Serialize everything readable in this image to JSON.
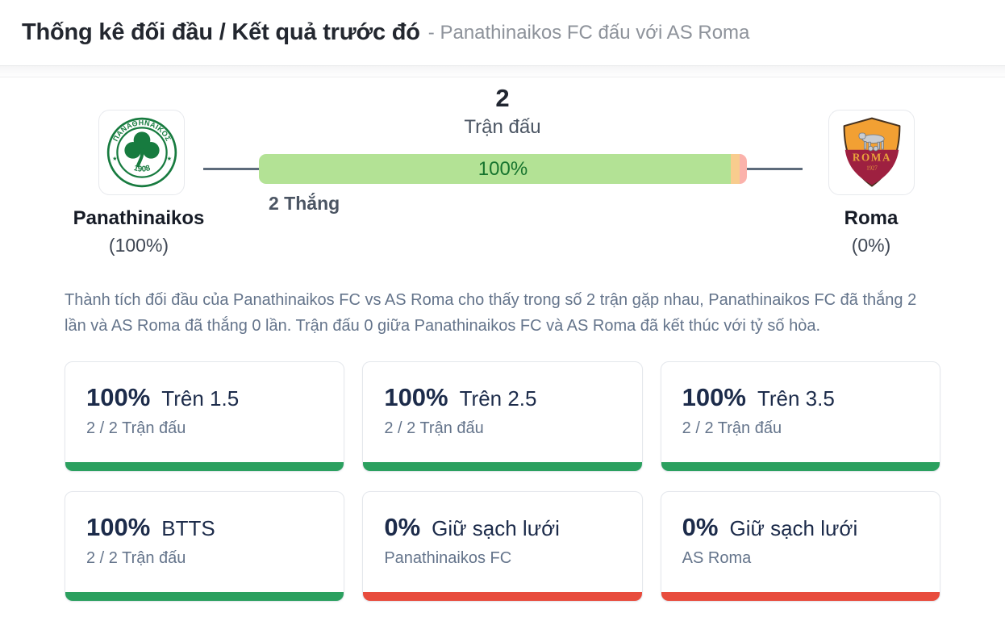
{
  "header": {
    "title": "Thống kê đối đầu / Kết quả trước đó",
    "subtitle": "- Panathinaikos FC đấu với AS Roma"
  },
  "h2h": {
    "matches_count": "2",
    "matches_label": "Trận đấu",
    "bar": {
      "label": "100%",
      "label_color": "#17742e",
      "segments": {
        "win": {
          "width": "96.7%",
          "color": "#b3e295"
        },
        "draw": {
          "width": "1.8%",
          "color": "#f8cc8e"
        },
        "loss": {
          "width": "1.5%",
          "color": "#fbb2ab"
        }
      }
    },
    "win_text": "2 Thắng",
    "home": {
      "name": "Panathinaikos",
      "pct": "(100%)",
      "logo": {
        "club": "ΠΑΝΑΘΗΝΑΪΚΟΣ",
        "year": "1908",
        "star": "★"
      }
    },
    "away": {
      "name": "Roma",
      "pct": "(0%)",
      "logo": {
        "club": "ROMA",
        "year": "1927"
      }
    },
    "wins": 2,
    "draws": 0,
    "losses": 0
  },
  "summary": "Thành tích đối đầu của Panathinaikos FC vs AS Roma cho thấy trong số 2 trận gặp nhau, Panathinaikos FC đã thắng 2 lần và AS Roma đã thắng 0 lần. Trận đấu 0 giữa Panathinaikos FC và AS Roma đã kết thúc với tỷ số hòa.",
  "stats_cards": [
    {
      "value": "100%",
      "label": "Trên 1.5",
      "sub": "2 / 2 Trận đấu",
      "bar_color": "#2ba05f"
    },
    {
      "value": "100%",
      "label": "Trên 2.5",
      "sub": "2 / 2 Trận đấu",
      "bar_color": "#2ba05f"
    },
    {
      "value": "100%",
      "label": "Trên 3.5",
      "sub": "2 / 2 Trận đấu",
      "bar_color": "#2ba05f"
    },
    {
      "value": "100%",
      "label": "BTTS",
      "sub": "2 / 2 Trận đấu",
      "bar_color": "#2ba05f"
    },
    {
      "value": "0%",
      "label": "Giữ sạch lưới",
      "sub": "Panathinaikos FC",
      "bar_color": "#e84c3d"
    },
    {
      "value": "0%",
      "label": "Giữ sạch lưới",
      "sub": "AS Roma",
      "bar_color": "#e84c3d"
    }
  ]
}
